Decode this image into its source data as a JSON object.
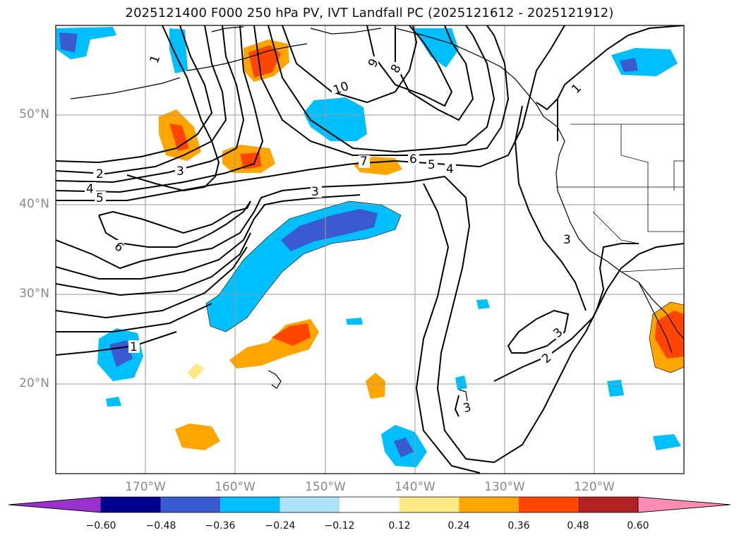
{
  "title": "2025121400 F000 250 hPa PV, IVT Landfall PC (2025121612 - 2025121912)",
  "lat_ticks": [
    "50°N",
    "40°N",
    "30°N",
    "20°N"
  ],
  "lon_ticks": [
    "170°W",
    "160°W",
    "150°W",
    "140°W",
    "130°W",
    "120°W"
  ],
  "colorbar": {
    "labels": [
      "−0.60",
      "−0.48",
      "−0.36",
      "−0.24",
      "−0.12",
      "0.12",
      "0.24",
      "0.36",
      "0.48",
      "0.60"
    ],
    "colors": [
      "#9932cc",
      "#00008b",
      "#3a5bd0",
      "#00bfff",
      "#ade3fa",
      "#ffffff",
      "#ffe985",
      "#ffa500",
      "#ff4500",
      "#b22222",
      "#ff8cb4"
    ]
  },
  "contour_labels": [
    "1",
    "2",
    "3",
    "4",
    "5",
    "6",
    "7",
    "8",
    "9",
    "10"
  ]
}
